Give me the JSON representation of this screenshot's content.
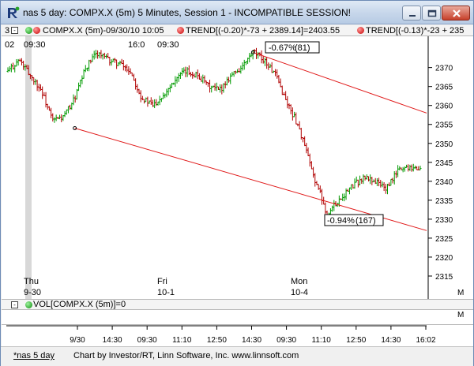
{
  "window": {
    "title": "nas 5 day: COMPX.X (5m) 5 Minutes, Session 1 - INCOMPATIBLE SESSION!",
    "icon": "investor-rt-logo-icon"
  },
  "indicator_row": {
    "first_tick_label": "3",
    "price_label": "COMPX.X (5m)-09/30/10 10:05",
    "trend1_label": "TREND[(-0.20)*-73 + 2389.14]=2403.55",
    "trend2_label": "TREND[(-0.13)*-23 + 235"
  },
  "chart_labels": {
    "left_time_a": "02",
    "left_time_b": "09:30",
    "mid_time_a": "16:0",
    "mid_time_b": "09:30",
    "trend_pct_upper": "-0.67%",
    "trend_bars_upper": "(81)",
    "trend_pct_lower": "-0.94%",
    "trend_bars_lower": "(167)",
    "panel_m_label": "M",
    "day_labels": [
      {
        "day": "Thu",
        "date": "9-30"
      },
      {
        "day": "Fri",
        "date": "10-1"
      },
      {
        "day": "Mon",
        "date": "10-4"
      }
    ]
  },
  "volume_panel": {
    "label": "VOL[COMPX.X (5m)]=0",
    "m_label": "M"
  },
  "status_bar": {
    "tab": "*nas 5 day",
    "credit": "Chart by Investor/RT, Linn Software, Inc. www.linnsoft.com"
  },
  "colors": {
    "up_bar": "#009a00",
    "down_bar": "#b00000",
    "trendline": "#e01818",
    "session_shade": "#d8d8d8"
  },
  "chart_data": {
    "type": "ohlc",
    "title": "COMPX.X (5m)",
    "ylim": [
      2310,
      2377
    ],
    "y_ticks": [
      2315,
      2320,
      2325,
      2330,
      2335,
      2340,
      2345,
      2350,
      2355,
      2360,
      2365,
      2370
    ],
    "x_ticks": [
      "9/30",
      "14:30",
      "09:30",
      "11:10",
      "12:50",
      "14:30",
      "09:30",
      "11:10",
      "12:50",
      "14:30",
      "16:02"
    ],
    "path_points": [
      [
        0,
        2369
      ],
      [
        3,
        2372
      ],
      [
        9,
        2364
      ],
      [
        12,
        2356
      ],
      [
        15,
        2357
      ],
      [
        18,
        2362
      ],
      [
        21,
        2370
      ],
      [
        24,
        2374
      ],
      [
        27,
        2372
      ],
      [
        30,
        2371
      ],
      [
        33,
        2369
      ],
      [
        36,
        2362
      ],
      [
        39,
        2360
      ],
      [
        42,
        2363
      ],
      [
        45,
        2367
      ],
      [
        48,
        2369
      ],
      [
        51,
        2368
      ],
      [
        54,
        2365
      ],
      [
        57,
        2364
      ],
      [
        60,
        2368
      ],
      [
        63,
        2370
      ],
      [
        66,
        2374
      ],
      [
        69,
        2372
      ],
      [
        72,
        2368
      ],
      [
        75,
        2361
      ],
      [
        78,
        2355
      ],
      [
        80,
        2349
      ],
      [
        82,
        2342
      ],
      [
        84,
        2337
      ],
      [
        86,
        2331
      ],
      [
        88,
        2334
      ],
      [
        90,
        2336
      ],
      [
        93,
        2339
      ],
      [
        96,
        2341
      ],
      [
        99,
        2340
      ],
      [
        102,
        2338
      ],
      [
        105,
        2343
      ],
      [
        108,
        2344
      ],
      [
        111,
        2343
      ]
    ],
    "trendlines": [
      {
        "name": "TREND (-0.20)",
        "from": [
          18,
          2354
        ],
        "to": [
          111,
          2327
        ]
      },
      {
        "name": "TREND (-0.13)",
        "from": [
          66,
          2374
        ],
        "to": [
          111,
          2358
        ]
      }
    ],
    "annotations": [
      {
        "text": "-0.67%(81)",
        "x": 68,
        "y": 2369
      },
      {
        "text": "-0.94%(167)",
        "x": 84,
        "y": 2332
      }
    ],
    "grid": false,
    "volume": 0
  }
}
